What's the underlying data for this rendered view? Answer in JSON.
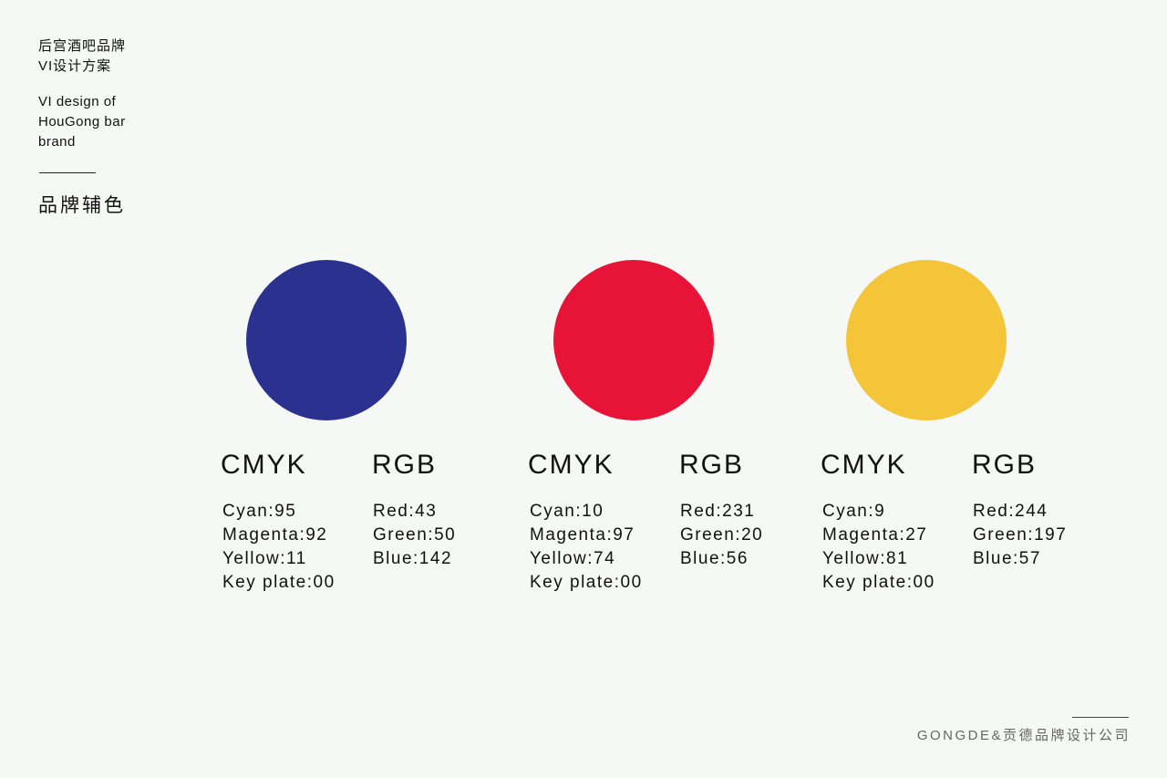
{
  "header": {
    "title_lines": [
      "后宫酒吧品牌",
      "VI设计方案"
    ],
    "subtitle_lines": [
      "VI design of",
      "HouGong bar",
      "brand"
    ],
    "section": "品牌辅色"
  },
  "swatches": [
    {
      "color": "#2b318e",
      "cmyk_heading": "CMYK",
      "rgb_heading": "RGB",
      "cmyk": [
        "Cyan:95",
        "Magenta:92",
        "Yellow:11",
        "Key plate:00"
      ],
      "rgb": [
        "Red:43",
        "Green:50",
        "Blue:142"
      ]
    },
    {
      "color": "#e71438",
      "cmyk_heading": "CMYK",
      "rgb_heading": "RGB",
      "cmyk": [
        "Cyan:10",
        "Magenta:97",
        "Yellow:74",
        "Key plate:00"
      ],
      "rgb": [
        "Red:231",
        "Green:20",
        "Blue:56"
      ]
    },
    {
      "color": "#f4c539",
      "cmyk_heading": "CMYK",
      "rgb_heading": "RGB",
      "cmyk": [
        "Cyan:9",
        "Magenta:27",
        "Yellow:81",
        "Key plate:00"
      ],
      "rgb": [
        "Red:244",
        "Green:197",
        "Blue:57"
      ]
    }
  ],
  "footer": {
    "company": "GONGDE&贡德品牌设计公司"
  }
}
